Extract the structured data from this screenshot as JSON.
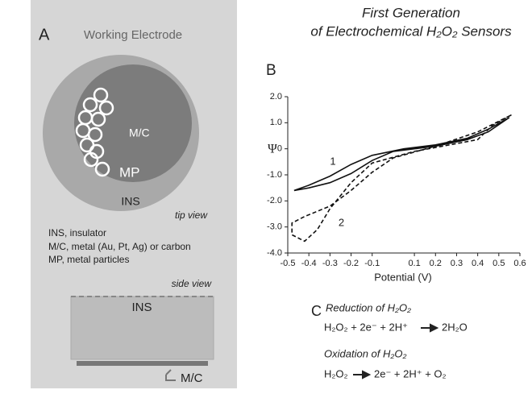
{
  "panel_a": {
    "label": "A",
    "title": "Working Electrode",
    "inner": "M/C",
    "particles": "MP",
    "outer": "INS",
    "tip_view": "tip view",
    "legend": [
      "INS,  insulator",
      "M/C,  metal (Au, Pt, Ag) or carbon",
      "MP,  metal particles"
    ],
    "side_view": "side view",
    "side_ins": "INS",
    "side_mc": "M/C"
  },
  "chart_data": {
    "type": "line",
    "panel_label": "B",
    "title": [
      "First Generation",
      "of Electrochemical H₂O₂ Sensors"
    ],
    "x_label": "Potential (V)",
    "y_label": "Ψ",
    "xlim": [
      -0.5,
      0.6
    ],
    "xticks": [
      -0.5,
      -0.4,
      -0.3,
      -0.2,
      -0.1,
      0.1,
      0.2,
      0.3,
      0.4,
      0.5,
      0.6
    ],
    "ylim": [
      -4,
      2
    ],
    "yticks": [
      {
        "value": 2,
        "label": "2.0"
      },
      {
        "value": 1,
        "label": "1.0"
      },
      0,
      {
        "value": -1,
        "label": "-1.0"
      },
      {
        "value": -2,
        "label": "-2.0"
      },
      {
        "value": -3,
        "label": "-3.0"
      },
      {
        "value": -4,
        "label": "-4.0"
      }
    ],
    "series": [
      {
        "name": "1",
        "color": "#111111",
        "dashed": false,
        "x": [
          0.55,
          0.45,
          0.35,
          0.2,
          0.05,
          -0.1,
          -0.2,
          -0.3,
          -0.4,
          -0.47,
          -0.4,
          -0.3,
          -0.2,
          -0.1,
          0.0,
          0.2,
          0.35,
          0.45,
          0.55
        ],
        "values": [
          1.2,
          0.75,
          0.4,
          0.15,
          0.0,
          -0.25,
          -0.6,
          -1.05,
          -1.4,
          -1.6,
          -1.5,
          -1.3,
          -0.95,
          -0.45,
          -0.1,
          0.1,
          0.35,
          0.65,
          1.2
        ]
      },
      {
        "name": "2",
        "color": "#111111",
        "dashed": true,
        "x": [
          0.56,
          0.47,
          0.4,
          0.3,
          0.1,
          -0.1,
          -0.2,
          -0.3,
          -0.36,
          -0.42,
          -0.48,
          -0.48,
          -0.42,
          -0.3,
          -0.2,
          -0.1,
          0.0,
          0.2,
          0.4,
          0.56
        ],
        "values": [
          1.3,
          0.9,
          0.35,
          0.2,
          -0.1,
          -0.55,
          -1.3,
          -2.3,
          -3.1,
          -3.55,
          -3.3,
          -2.85,
          -2.6,
          -2.2,
          -1.6,
          -0.9,
          -0.35,
          0.1,
          0.65,
          1.3
        ]
      }
    ]
  },
  "panel_c": {
    "label": "C",
    "reduction_title": "Reduction of H₂O₂",
    "reduction_left": "H₂O₂ + 2e⁻ + 2H⁺",
    "reduction_right": "2H₂O",
    "oxidation_title": "Oxidation of H₂O₂",
    "oxidation_left": "H₂O₂",
    "oxidation_right": "2e⁻ + 2H⁺ + O₂"
  }
}
